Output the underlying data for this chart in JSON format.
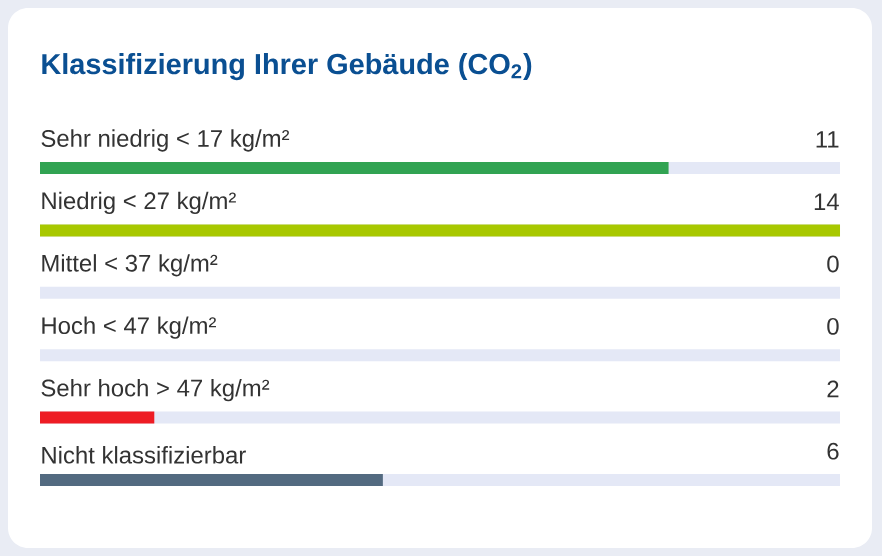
{
  "chart_data": {
    "type": "bar",
    "orientation": "horizontal",
    "title": "Klassifizierung Ihrer Gebäude (CO$_{2}$)",
    "categories": [
      "Sehr niedrig < 17 kg/m²",
      "Niedrig < 27 kg/m²",
      "Mittel < 37 kg/m²",
      "Hoch < 47 kg/m²",
      "Sehr hoch > 47 kg/m²",
      "Nicht klassifizierbar"
    ],
    "values": [
      11,
      14,
      0,
      0,
      2,
      6
    ],
    "colors": [
      "#31a352",
      "#a8c800",
      "#a8c800",
      "#a8c800",
      "#ee1c24",
      "#536a80"
    ],
    "data_labels": true
  }
}
